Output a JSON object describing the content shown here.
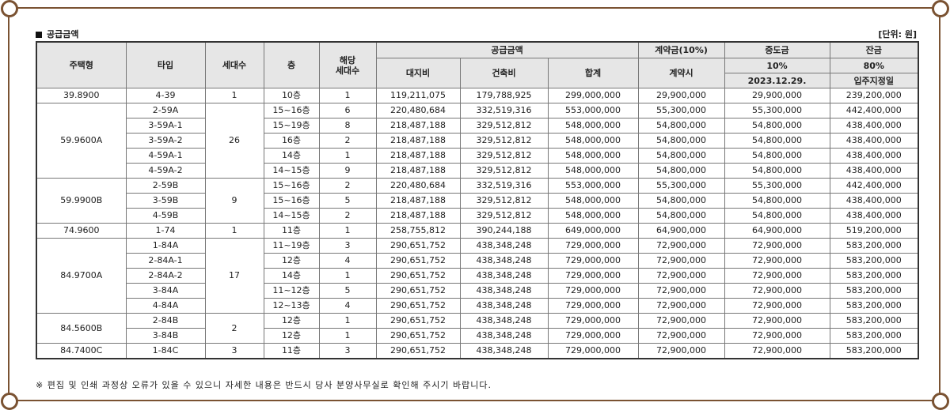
{
  "title": "공급금액",
  "unit": "[단위: 원]",
  "headers": {
    "housing_type": "주택형",
    "type": "타입",
    "households": "세대수",
    "floor": "층",
    "applicable_households": "해당\n세대수",
    "supply_amount": "공급금액",
    "land_cost": "대지비",
    "building_cost": "건축비",
    "total": "합계",
    "contract": "계약금(10%)",
    "contract_when": "계약시",
    "interim": "중도금",
    "interim_pct": "10%",
    "interim_date": "2023.12.29.",
    "balance": "잔금",
    "balance_pct": "80%",
    "balance_when": "입주지정일"
  },
  "groups": [
    {
      "housing_type": "39.8900",
      "households": "1",
      "rows": [
        {
          "type": "4-39",
          "floor": "10층",
          "count": "1",
          "land": "119,211,075",
          "building": "179,788,925",
          "total": "299,000,000",
          "contract": "29,900,000",
          "interim": "29,900,000",
          "balance": "239,200,000"
        }
      ]
    },
    {
      "housing_type": "59.9600A",
      "households": "26",
      "rows": [
        {
          "type": "2-59A",
          "floor": "15~16층",
          "count": "6",
          "land": "220,480,684",
          "building": "332,519,316",
          "total": "553,000,000",
          "contract": "55,300,000",
          "interim": "55,300,000",
          "balance": "442,400,000"
        },
        {
          "type": "3-59A-1",
          "floor": "15~19층",
          "count": "8",
          "land": "218,487,188",
          "building": "329,512,812",
          "total": "548,000,000",
          "contract": "54,800,000",
          "interim": "54,800,000",
          "balance": "438,400,000"
        },
        {
          "type": "3-59A-2",
          "floor": "16층",
          "count": "2",
          "land": "218,487,188",
          "building": "329,512,812",
          "total": "548,000,000",
          "contract": "54,800,000",
          "interim": "54,800,000",
          "balance": "438,400,000"
        },
        {
          "type": "4-59A-1",
          "floor": "14층",
          "count": "1",
          "land": "218,487,188",
          "building": "329,512,812",
          "total": "548,000,000",
          "contract": "54,800,000",
          "interim": "54,800,000",
          "balance": "438,400,000"
        },
        {
          "type": "4-59A-2",
          "floor": "14~15층",
          "count": "9",
          "land": "218,487,188",
          "building": "329,512,812",
          "total": "548,000,000",
          "contract": "54,800,000",
          "interim": "54,800,000",
          "balance": "438,400,000"
        }
      ]
    },
    {
      "housing_type": "59.9900B",
      "households": "9",
      "rows": [
        {
          "type": "2-59B",
          "floor": "15~16층",
          "count": "2",
          "land": "220,480,684",
          "building": "332,519,316",
          "total": "553,000,000",
          "contract": "55,300,000",
          "interim": "55,300,000",
          "balance": "442,400,000"
        },
        {
          "type": "3-59B",
          "floor": "15~16층",
          "count": "5",
          "land": "218,487,188",
          "building": "329,512,812",
          "total": "548,000,000",
          "contract": "54,800,000",
          "interim": "54,800,000",
          "balance": "438,400,000"
        },
        {
          "type": "4-59B",
          "floor": "14~15층",
          "count": "2",
          "land": "218,487,188",
          "building": "329,512,812",
          "total": "548,000,000",
          "contract": "54,800,000",
          "interim": "54,800,000",
          "balance": "438,400,000"
        }
      ]
    },
    {
      "housing_type": "74.9600",
      "households": "1",
      "rows": [
        {
          "type": "1-74",
          "floor": "11층",
          "count": "1",
          "land": "258,755,812",
          "building": "390,244,188",
          "total": "649,000,000",
          "contract": "64,900,000",
          "interim": "64,900,000",
          "balance": "519,200,000"
        }
      ]
    },
    {
      "housing_type": "84.9700A",
      "households": "17",
      "rows": [
        {
          "type": "1-84A",
          "floor": "11~19층",
          "count": "3",
          "land": "290,651,752",
          "building": "438,348,248",
          "total": "729,000,000",
          "contract": "72,900,000",
          "interim": "72,900,000",
          "balance": "583,200,000"
        },
        {
          "type": "2-84A-1",
          "floor": "12층",
          "count": "4",
          "land": "290,651,752",
          "building": "438,348,248",
          "total": "729,000,000",
          "contract": "72,900,000",
          "interim": "72,900,000",
          "balance": "583,200,000"
        },
        {
          "type": "2-84A-2",
          "floor": "14층",
          "count": "1",
          "land": "290,651,752",
          "building": "438,348,248",
          "total": "729,000,000",
          "contract": "72,900,000",
          "interim": "72,900,000",
          "balance": "583,200,000"
        },
        {
          "type": "3-84A",
          "floor": "11~12층",
          "count": "5",
          "land": "290,651,752",
          "building": "438,348,248",
          "total": "729,000,000",
          "contract": "72,900,000",
          "interim": "72,900,000",
          "balance": "583,200,000"
        },
        {
          "type": "4-84A",
          "floor": "12~13층",
          "count": "4",
          "land": "290,651,752",
          "building": "438,348,248",
          "total": "729,000,000",
          "contract": "72,900,000",
          "interim": "72,900,000",
          "balance": "583,200,000"
        }
      ]
    },
    {
      "housing_type": "84.5600B",
      "households": "2",
      "rows": [
        {
          "type": "2-84B",
          "floor": "12층",
          "count": "1",
          "land": "290,651,752",
          "building": "438,348,248",
          "total": "729,000,000",
          "contract": "72,900,000",
          "interim": "72,900,000",
          "balance": "583,200,000"
        },
        {
          "type": "3-84B",
          "floor": "12층",
          "count": "1",
          "land": "290,651,752",
          "building": "438,348,248",
          "total": "729,000,000",
          "contract": "72,900,000",
          "interim": "72,900,000",
          "balance": "583,200,000"
        }
      ]
    },
    {
      "housing_type": "84.7400C",
      "households": "3",
      "rows": [
        {
          "type": "1-84C",
          "floor": "11층",
          "count": "3",
          "land": "290,651,752",
          "building": "438,348,248",
          "total": "729,000,000",
          "contract": "72,900,000",
          "interim": "72,900,000",
          "balance": "583,200,000"
        }
      ]
    }
  ],
  "note": "※ 편집 및 인쇄 과정상 오류가 있을 수 있으니 자세한 내용은 반드시 당사 분양사무실로 확인해 주시기 바랍니다."
}
